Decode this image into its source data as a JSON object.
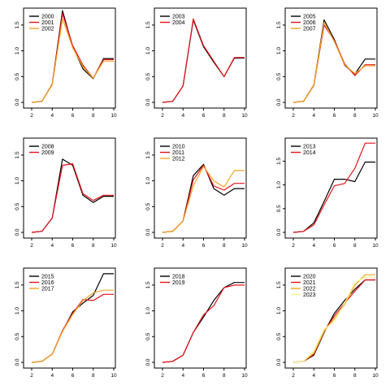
{
  "colors": {
    "black": "#000000",
    "red": "#e8121b",
    "orange": "#f5a623",
    "yellow": "#f2f28c"
  },
  "chart_data": [
    {
      "type": "line",
      "x": [
        2,
        3,
        4,
        5,
        6,
        7,
        8,
        9,
        10
      ],
      "xlim": [
        2,
        10
      ],
      "ylim": [
        0,
        1.75
      ],
      "xticks": [
        "2",
        "4",
        "6",
        "8",
        "10"
      ],
      "yticks": [
        "0.0",
        "0.5",
        "1.0",
        "1.5"
      ],
      "series": [
        {
          "name": "2000",
          "color": "black",
          "values": [
            0,
            0.02,
            0.35,
            1.78,
            1.08,
            0.65,
            0.46,
            0.85,
            0.85
          ]
        },
        {
          "name": "2001",
          "color": "red",
          "values": [
            0,
            0.02,
            0.35,
            1.72,
            1.1,
            0.72,
            0.47,
            0.83,
            0.83
          ]
        },
        {
          "name": "2002",
          "color": "orange",
          "values": [
            0,
            0.02,
            0.34,
            1.62,
            1.06,
            0.69,
            0.47,
            0.8,
            0.8
          ]
        }
      ]
    },
    {
      "type": "line",
      "x": [
        2,
        3,
        4,
        5,
        6,
        7,
        8,
        9,
        10
      ],
      "xlim": [
        2,
        10
      ],
      "ylim": [
        0,
        1.75
      ],
      "xticks": [
        "2",
        "4",
        "6",
        "8",
        "10"
      ],
      "yticks": [
        "0.0",
        "0.5",
        "1.0",
        "1.5"
      ],
      "series": [
        {
          "name": "2003",
          "color": "black",
          "values": [
            0,
            0.02,
            0.32,
            1.6,
            1.08,
            0.78,
            0.5,
            0.86,
            0.86
          ]
        },
        {
          "name": "2004",
          "color": "red",
          "values": [
            0,
            0.02,
            0.32,
            1.62,
            1.1,
            0.8,
            0.5,
            0.87,
            0.87
          ]
        }
      ]
    },
    {
      "type": "line",
      "x": [
        2,
        3,
        4,
        5,
        6,
        7,
        8,
        9,
        10
      ],
      "xlim": [
        2,
        10
      ],
      "ylim": [
        0,
        1.75
      ],
      "xticks": [
        "2",
        "4",
        "6",
        "8",
        "10"
      ],
      "yticks": [
        "0.0",
        "0.5",
        "1.0",
        "1.5"
      ],
      "series": [
        {
          "name": "2005",
          "color": "black",
          "values": [
            0,
            0.02,
            0.34,
            1.6,
            1.22,
            0.72,
            0.55,
            0.84,
            0.84
          ]
        },
        {
          "name": "2006",
          "color": "red",
          "values": [
            0,
            0.02,
            0.33,
            1.5,
            1.2,
            0.75,
            0.52,
            0.73,
            0.73
          ]
        },
        {
          "name": "2007",
          "color": "orange",
          "values": [
            0,
            0.02,
            0.34,
            1.55,
            1.18,
            0.73,
            0.56,
            0.71,
            0.71
          ]
        }
      ]
    },
    {
      "type": "line",
      "x": [
        2,
        3,
        4,
        5,
        6,
        7,
        8,
        9,
        10
      ],
      "xlim": [
        2,
        10
      ],
      "ylim": [
        0,
        1.75
      ],
      "xticks": [
        "2",
        "4",
        "6",
        "8",
        "10"
      ],
      "yticks": [
        "0.0",
        "0.5",
        "1.0",
        "1.5"
      ],
      "series": [
        {
          "name": "2008",
          "color": "black",
          "values": [
            0,
            0.02,
            0.28,
            1.42,
            1.3,
            0.72,
            0.58,
            0.7,
            0.7
          ]
        },
        {
          "name": "2009",
          "color": "red",
          "values": [
            0,
            0.02,
            0.28,
            1.3,
            1.33,
            0.75,
            0.62,
            0.72,
            0.72
          ]
        }
      ]
    },
    {
      "type": "line",
      "x": [
        2,
        3,
        4,
        5,
        6,
        7,
        8,
        9,
        10
      ],
      "xlim": [
        2,
        10
      ],
      "ylim": [
        0,
        1.75
      ],
      "xticks": [
        "2",
        "4",
        "6",
        "8",
        "10"
      ],
      "yticks": [
        "0.0",
        "0.5",
        "1.0",
        "1.5"
      ],
      "series": [
        {
          "name": "2010",
          "color": "black",
          "values": [
            0,
            0.02,
            0.22,
            1.1,
            1.32,
            0.85,
            0.72,
            0.85,
            0.85
          ]
        },
        {
          "name": "2011",
          "color": "red",
          "values": [
            0,
            0.02,
            0.22,
            1.02,
            1.3,
            0.9,
            0.82,
            0.95,
            0.95
          ]
        },
        {
          "name": "2012",
          "color": "orange",
          "values": [
            0,
            0.02,
            0.22,
            0.9,
            1.28,
            1.0,
            0.88,
            1.2,
            1.2
          ]
        }
      ]
    },
    {
      "type": "line",
      "x": [
        2,
        3,
        4,
        5,
        6,
        7,
        8,
        9,
        10
      ],
      "xlim": [
        2,
        10
      ],
      "ylim": [
        0,
        1.9
      ],
      "xticks": [
        "2",
        "4",
        "6",
        "8",
        "10"
      ],
      "yticks": [
        "0.0",
        "0.5",
        "1.0",
        "1.5"
      ],
      "series": [
        {
          "name": "2013",
          "color": "black",
          "values": [
            0,
            0.02,
            0.2,
            0.65,
            1.12,
            1.12,
            1.07,
            1.48,
            1.48
          ]
        },
        {
          "name": "2014",
          "color": "red",
          "values": [
            0,
            0.02,
            0.16,
            0.58,
            0.98,
            1.03,
            1.35,
            1.88,
            1.88
          ]
        }
      ]
    },
    {
      "type": "line",
      "x": [
        2,
        3,
        4,
        5,
        6,
        7,
        8,
        9,
        10
      ],
      "xlim": [
        2,
        10
      ],
      "ylim": [
        0,
        1.75
      ],
      "xticks": [
        "2",
        "4",
        "6",
        "8",
        "10"
      ],
      "yticks": [
        "0.0",
        "0.5",
        "1.0",
        "1.5"
      ],
      "series": [
        {
          "name": "2015",
          "color": "black",
          "values": [
            0,
            0.02,
            0.16,
            0.6,
            0.98,
            1.15,
            1.3,
            1.72,
            1.72
          ]
        },
        {
          "name": "2016",
          "color": "red",
          "values": [
            0,
            0.02,
            0.16,
            0.62,
            0.95,
            1.22,
            1.2,
            1.32,
            1.32
          ]
        },
        {
          "name": "2017",
          "color": "orange",
          "values": [
            0,
            0.02,
            0.16,
            0.6,
            0.93,
            1.2,
            1.35,
            1.4,
            1.4
          ]
        }
      ]
    },
    {
      "type": "line",
      "x": [
        2,
        3,
        4,
        5,
        6,
        7,
        8,
        9,
        10
      ],
      "xlim": [
        2,
        10
      ],
      "ylim": [
        0,
        1.75
      ],
      "xticks": [
        "2",
        "4",
        "6",
        "8",
        "10"
      ],
      "yticks": [
        "0.0",
        "0.5",
        "1.0",
        "1.5"
      ],
      "series": [
        {
          "name": "2018",
          "color": "black",
          "values": [
            0,
            0.02,
            0.14,
            0.58,
            0.88,
            1.2,
            1.45,
            1.55,
            1.55
          ]
        },
        {
          "name": "2019",
          "color": "red",
          "values": [
            0,
            0.02,
            0.14,
            0.58,
            0.92,
            1.1,
            1.45,
            1.5,
            1.5
          ]
        }
      ]
    },
    {
      "type": "line",
      "x": [
        2,
        3,
        4,
        5,
        6,
        7,
        8,
        9,
        10
      ],
      "xlim": [
        2,
        10
      ],
      "ylim": [
        0,
        1.75
      ],
      "xticks": [
        "2",
        "4",
        "6",
        "8",
        "10"
      ],
      "yticks": [
        "0.0",
        "0.5",
        "1.0",
        "1.5"
      ],
      "series": [
        {
          "name": "2020",
          "color": "black",
          "values": [
            0,
            0.02,
            0.14,
            0.58,
            0.95,
            1.2,
            1.42,
            1.6,
            1.6
          ]
        },
        {
          "name": "2021",
          "color": "red",
          "values": [
            0,
            0.02,
            0.16,
            0.6,
            0.9,
            1.15,
            1.38,
            1.6,
            1.6
          ]
        },
        {
          "name": "2022",
          "color": "orange",
          "values": [
            0,
            0.02,
            0.18,
            0.6,
            0.85,
            1.12,
            1.5,
            1.7,
            1.7
          ]
        },
        {
          "name": "2023",
          "color": "yellow",
          "values": [
            0,
            0.02,
            0.22,
            0.64,
            0.8,
            1.15,
            1.55,
            1.65,
            1.65
          ]
        }
      ]
    }
  ]
}
